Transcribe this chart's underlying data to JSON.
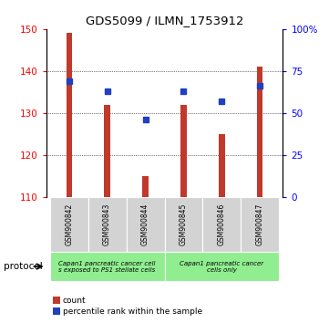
{
  "title": "GDS5099 / ILMN_1753912",
  "samples": [
    "GSM900842",
    "GSM900843",
    "GSM900844",
    "GSM900845",
    "GSM900846",
    "GSM900847"
  ],
  "bar_values": [
    149,
    132,
    115,
    132,
    125,
    141
  ],
  "percentile_values": [
    69,
    63,
    46,
    63,
    57,
    66
  ],
  "bar_bottom": 110,
  "ylim_left": [
    110,
    150
  ],
  "ylim_right": [
    0,
    100
  ],
  "yticks_left": [
    110,
    120,
    130,
    140,
    150
  ],
  "yticks_right": [
    0,
    25,
    50,
    75,
    100
  ],
  "bar_color": "#c0392b",
  "percentile_color": "#2040c0",
  "group1_label": "Capan1 pancreatic cancer cell\ns exposed to PS1 stellate cells",
  "group2_label": "Capan1 pancreatic cancer\ncells only",
  "group_bg_color": "#90ee90",
  "tick_label_bg": "#d3d3d3",
  "legend_count_label": "count",
  "legend_percentile_label": "percentile rank within the sample",
  "protocol_label": "protocol",
  "bar_width": 0.15,
  "figsize": [
    3.61,
    3.54
  ],
  "dpi": 100
}
